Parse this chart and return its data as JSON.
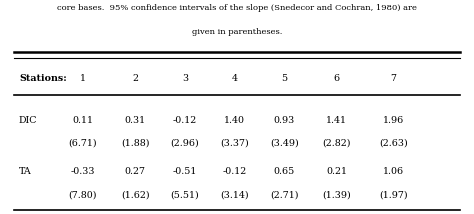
{
  "caption_line1": "core bases.  95% confidence intervals of the slope (Snedecor and Cochran, 1980) are",
  "caption_line2": "given in parentheses.",
  "stations": [
    "1",
    "2",
    "3",
    "4",
    "5",
    "6",
    "7"
  ],
  "dic_values": [
    "0.11",
    "0.31",
    "-0.12",
    "1.40",
    "0.93",
    "1.41",
    "1.96"
  ],
  "dic_ci": [
    "(6.71)",
    "(1.88)",
    "(2.96)",
    "(3.37)",
    "(3.49)",
    "(2.82)",
    "(2.63)"
  ],
  "ta_values": [
    "-0.33",
    "0.27",
    "-0.51",
    "-0.12",
    "0.65",
    "0.21",
    "1.06"
  ],
  "ta_ci": [
    "(7.80)",
    "(1.62)",
    "(5.51)",
    "(3.14)",
    "(2.71)",
    "(1.39)",
    "(1.97)"
  ],
  "bg_color": "#ffffff",
  "text_color": "#000000",
  "font_family": "DejaVu Serif",
  "fig_width": 4.74,
  "fig_height": 2.14,
  "dpi": 100
}
